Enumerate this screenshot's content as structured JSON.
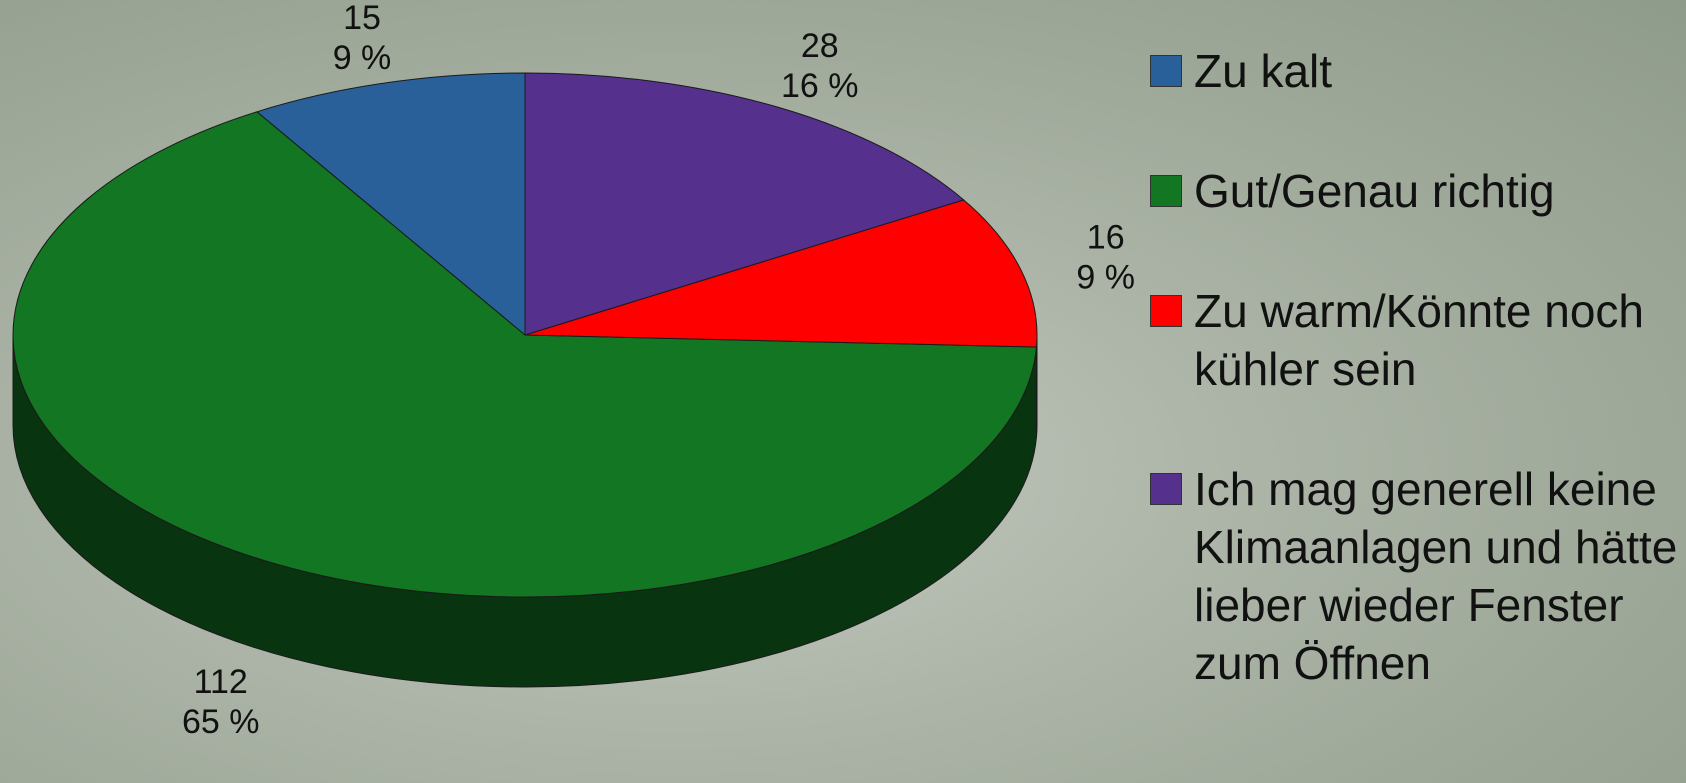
{
  "chart_data": {
    "type": "pie3d",
    "categories": [
      "Zu kalt",
      "Gut/Genau richtig",
      "Zu warm/Könnte noch kühler sein",
      "Ich mag generell keine Klimaanlagen und hätte lieber wieder Fenster zum Öffnen"
    ],
    "values": [
      15,
      112,
      16,
      28
    ],
    "percent_labels": [
      "9 %",
      "65 %",
      "9 %",
      "16 %"
    ],
    "colors": [
      "#2a6099",
      "#127622",
      "#ff0000",
      "#55308d"
    ],
    "legend": "right"
  }
}
